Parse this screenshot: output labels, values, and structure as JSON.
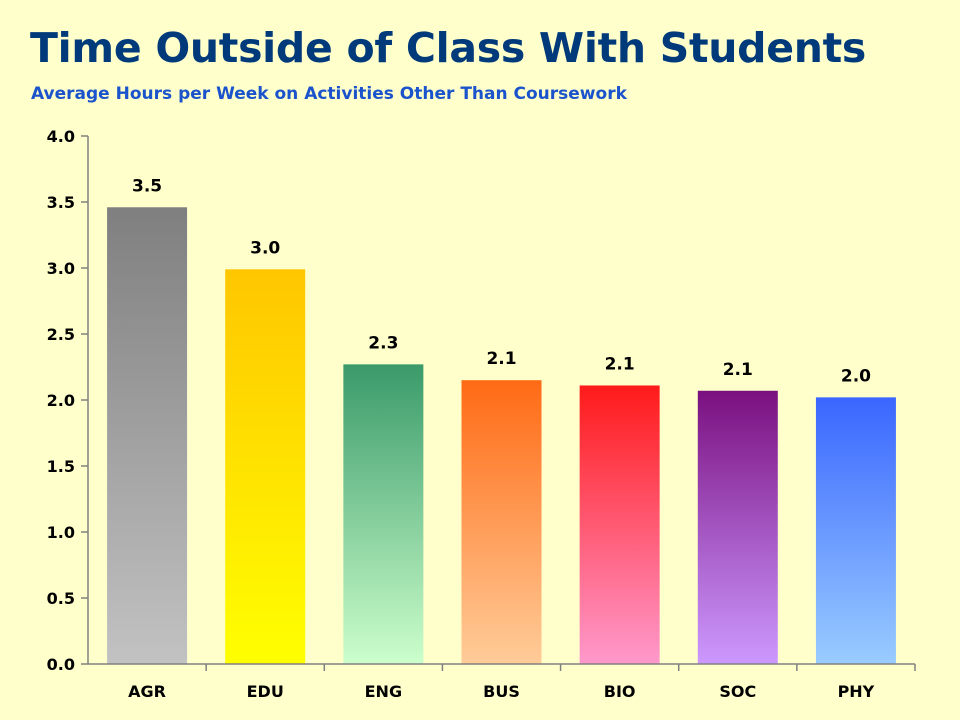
{
  "title": "Time Outside of Class With Students",
  "subtitle": "Average Hours per Week on Activities Other Than Coursework",
  "chart_data": {
    "type": "bar",
    "title": "Time Outside of Class With Students",
    "subtitle": "Average Hours per Week on Activities Other Than Coursework",
    "xlabel": "",
    "ylabel": "",
    "categories": [
      "AGR",
      "EDU",
      "ENG",
      "BUS",
      "BIO",
      "SOC",
      "PHY"
    ],
    "values": [
      3.46,
      2.99,
      2.27,
      2.15,
      2.11,
      2.07,
      2.02
    ],
    "data_labels": [
      "3.5",
      "3.0",
      "2.3",
      "2.1",
      "2.1",
      "2.1",
      "2.0"
    ],
    "ylim": [
      0,
      4
    ],
    "yticks": [
      "0.0",
      "0.5",
      "1.0",
      "1.5",
      "2.0",
      "2.5",
      "3.0",
      "3.5",
      "4.0"
    ],
    "grid": false,
    "legend": "none",
    "bar_colors": [
      {
        "top": "#7f7f7f",
        "bottom": "#c2c2c2"
      },
      {
        "top": "#ffc600",
        "bottom": "#ffff00"
      },
      {
        "top": "#3a9a6a",
        "bottom": "#ccffcc"
      },
      {
        "top": "#ff6a14",
        "bottom": "#ffcc99"
      },
      {
        "top": "#ff1a1a",
        "bottom": "#ff99cc"
      },
      {
        "top": "#7a1080",
        "bottom": "#cc99ff"
      },
      {
        "top": "#3a66ff",
        "bottom": "#99ccff"
      }
    ],
    "axis_color": "#808080"
  }
}
